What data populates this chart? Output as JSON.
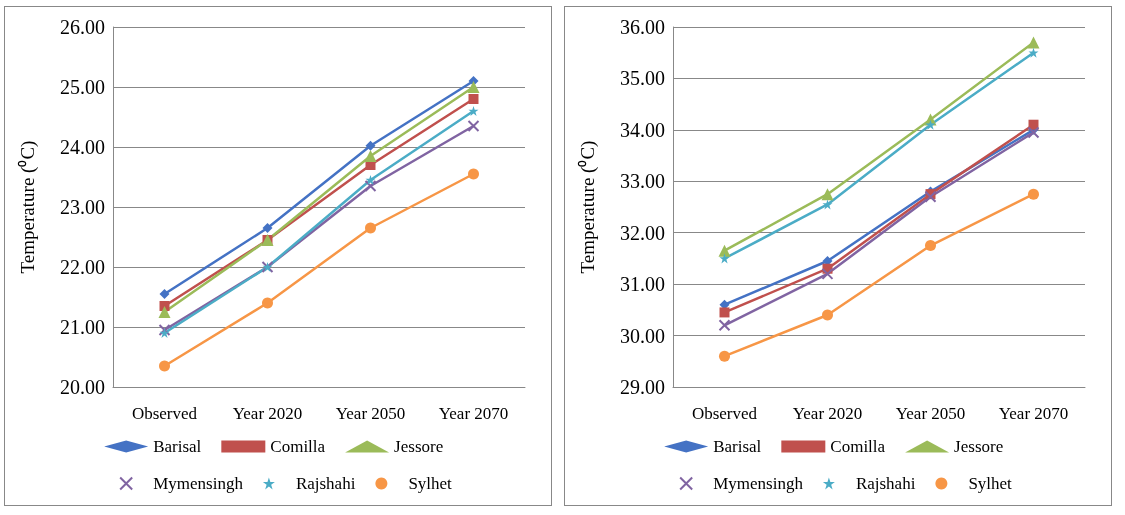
{
  "chart_data": [
    {
      "type": "line",
      "ylabel": "Temperature (⁰C)",
      "categories": [
        "Observed",
        "Year 2020",
        "Year 2050",
        "Year 2070"
      ],
      "ylim": [
        20,
        26
      ],
      "yticks": [
        {
          "value": 20,
          "label": "20.00"
        },
        {
          "value": 21,
          "label": "21.00"
        },
        {
          "value": 22,
          "label": "22.00"
        },
        {
          "value": 23,
          "label": "23.00"
        },
        {
          "value": 24,
          "label": "24.00"
        },
        {
          "value": 25,
          "label": "25.00"
        },
        {
          "value": 26,
          "label": "26.00"
        }
      ],
      "grid": "y",
      "legend": "bottom",
      "line_style": "solid",
      "series": [
        {
          "name": "Barisal",
          "color": "#4472c4",
          "marker": "diamond",
          "values": [
            21.55,
            22.65,
            24.02,
            25.1
          ]
        },
        {
          "name": "Comilla",
          "color": "#c0504d",
          "marker": "square",
          "values": [
            21.35,
            22.45,
            23.7,
            24.8
          ]
        },
        {
          "name": "Jessore",
          "color": "#9bbb59",
          "marker": "triangle",
          "values": [
            21.25,
            22.45,
            23.85,
            25.0
          ]
        },
        {
          "name": "Mymensingh",
          "color": "#8064a2",
          "marker": "cross",
          "values": [
            20.95,
            22.0,
            23.35,
            24.35
          ]
        },
        {
          "name": "Rajshahi",
          "color": "#4bacc6",
          "marker": "star",
          "values": [
            20.9,
            22.0,
            23.45,
            24.6
          ]
        },
        {
          "name": "Sylhet",
          "color": "#f79646",
          "marker": "circle",
          "values": [
            20.35,
            21.4,
            22.65,
            23.55
          ]
        }
      ]
    },
    {
      "type": "line",
      "ylabel": "Temperature (⁰C)",
      "categories": [
        "Observed",
        "Year 2020",
        "Year 2050",
        "Year 2070"
      ],
      "ylim": [
        29,
        36
      ],
      "yticks": [
        {
          "value": 29,
          "label": "29.00"
        },
        {
          "value": 30,
          "label": "30.00"
        },
        {
          "value": 31,
          "label": "31.00"
        },
        {
          "value": 32,
          "label": "32.00"
        },
        {
          "value": 33,
          "label": "33.00"
        },
        {
          "value": 34,
          "label": "34.00"
        },
        {
          "value": 35,
          "label": "35.00"
        },
        {
          "value": 36,
          "label": "36.00"
        }
      ],
      "grid": "y",
      "legend": "bottom",
      "line_style": "solid",
      "series": [
        {
          "name": "Barisal",
          "color": "#4472c4",
          "marker": "diamond",
          "values": [
            30.6,
            31.45,
            32.8,
            34.0
          ]
        },
        {
          "name": "Comilla",
          "color": "#c0504d",
          "marker": "square",
          "values": [
            30.45,
            31.3,
            32.75,
            34.1
          ]
        },
        {
          "name": "Jessore",
          "color": "#9bbb59",
          "marker": "triangle",
          "values": [
            31.65,
            32.75,
            34.2,
            35.7
          ]
        },
        {
          "name": "Mymensingh",
          "color": "#8064a2",
          "marker": "cross",
          "values": [
            30.2,
            31.2,
            32.7,
            33.95
          ]
        },
        {
          "name": "Rajshahi",
          "color": "#4bacc6",
          "marker": "star",
          "values": [
            31.5,
            32.55,
            34.1,
            35.5
          ]
        },
        {
          "name": "Sylhet",
          "color": "#f79646",
          "marker": "circle",
          "values": [
            29.6,
            30.4,
            31.75,
            32.75
          ]
        }
      ]
    }
  ]
}
